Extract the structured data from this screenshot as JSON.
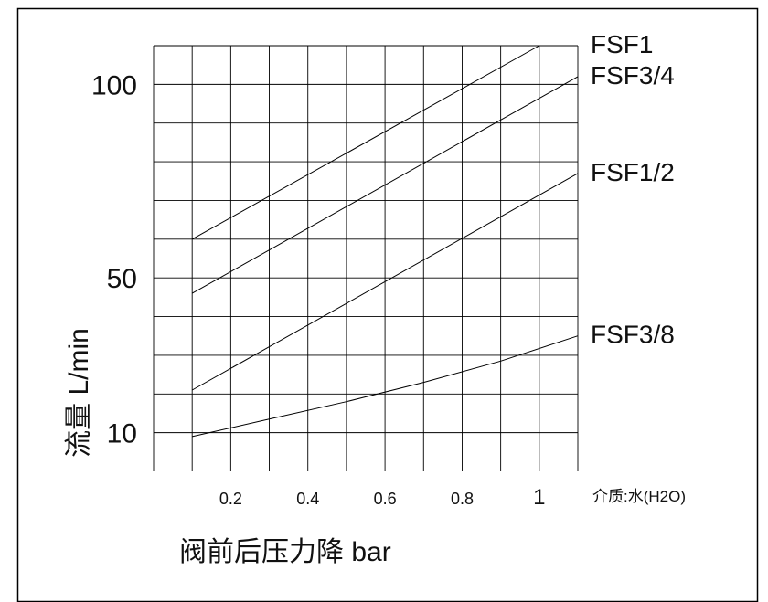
{
  "chart_data": {
    "type": "line",
    "title": "",
    "xlabel": "阀前后压力降 bar",
    "ylabel": "流量 L/min",
    "medium_note": "介质:水(H2O)",
    "xlim": [
      0.0,
      1.1
    ],
    "ylim": [
      0,
      110
    ],
    "x_ticks": [
      0.2,
      0.4,
      0.6,
      0.8,
      1
    ],
    "x_tick_labels": [
      "0.2",
      "0.4",
      "0.6",
      "0.8",
      "1"
    ],
    "y_ticks": [
      10,
      50,
      100
    ],
    "y_tick_labels": [
      "10",
      "50",
      "100"
    ],
    "grid": true,
    "series": [
      {
        "name": "FSF1",
        "x": [
          0.1,
          1.0
        ],
        "y": [
          60,
          110
        ]
      },
      {
        "name": "FSF3/4",
        "x": [
          0.1,
          1.1
        ],
        "y": [
          46,
          102
        ]
      },
      {
        "name": "FSF1/2",
        "x": [
          0.1,
          1.1
        ],
        "y": [
          21,
          77
        ]
      },
      {
        "name": "FSF3/8",
        "x": [
          0.1,
          0.3,
          0.5,
          0.7,
          0.9,
          1.1
        ],
        "y": [
          9,
          13.5,
          18,
          23,
          28.5,
          35
        ]
      }
    ]
  }
}
